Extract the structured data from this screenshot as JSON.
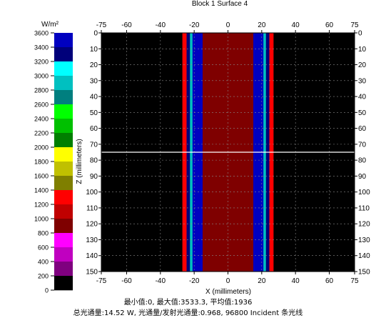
{
  "title": "Block 1 Surface 4",
  "colorbar": {
    "unit": "W/m²",
    "ticks": [
      "3600",
      "3400",
      "3200",
      "3000",
      "2800",
      "2600",
      "2400",
      "2200",
      "2000",
      "1800",
      "1600",
      "1400",
      "1200",
      "1000",
      "800",
      "600",
      "400",
      "200",
      "0"
    ],
    "colors": [
      "#0000c0",
      "#00007a",
      "#00ffff",
      "#00c0c0",
      "#007f7f",
      "#00ff00",
      "#00c000",
      "#007f00",
      "#ffff00",
      "#c0c000",
      "#7f7f00",
      "#ff0000",
      "#c00000",
      "#7f0000",
      "#ff00ff",
      "#c000c0",
      "#7f007f",
      "#000000"
    ]
  },
  "axes": {
    "x_ticks": [
      "-75",
      "-60",
      "-40",
      "-20",
      "0",
      "20",
      "40",
      "60",
      "75"
    ],
    "z_ticks": [
      "0",
      "10",
      "20",
      "30",
      "40",
      "50",
      "60",
      "70",
      "80",
      "90",
      "100",
      "110",
      "120",
      "130",
      "140",
      "150"
    ],
    "xlabel": "X (millimeters)",
    "zlabel": "Z (millimeters)"
  },
  "chart_data": {
    "type": "heatmap",
    "title": "Block 1 Surface 4",
    "xlabel": "X (millimeters)",
    "ylabel": "Z (millimeters)",
    "xlim": [
      -75,
      75
    ],
    "zlim": [
      0,
      150
    ],
    "z_direction": "down",
    "colorbar_range": [
      0,
      3600
    ],
    "colorbar_unit": "W/m²",
    "cursor_line_z": 75,
    "bands": [
      {
        "x0": -75,
        "x1": -27,
        "value": 0
      },
      {
        "x0": -27,
        "x1": -24.5,
        "value": 1300
      },
      {
        "x0": -24.5,
        "x1": -22.5,
        "value": 3300
      },
      {
        "x0": -22.5,
        "x1": -21,
        "value": 3000
      },
      {
        "x0": -21,
        "x1": -15,
        "value": 3550
      },
      {
        "x0": -15,
        "x1": 15,
        "value": 1000
      },
      {
        "x0": 15,
        "x1": 21,
        "value": 3550
      },
      {
        "x0": 21,
        "x1": 22.5,
        "value": 3000
      },
      {
        "x0": 22.5,
        "x1": 24.5,
        "value": 3300
      },
      {
        "x0": 24.5,
        "x1": 27,
        "value": 1300
      },
      {
        "x0": 27,
        "x1": 75,
        "value": 0
      }
    ]
  },
  "stats": {
    "line1": "最小值:0, 最大值:3533.3, 平均值:1936",
    "line2": "总光通量:14.52 W, 光通量/发射光通量:0.968, 96800 Incident 条光线"
  }
}
